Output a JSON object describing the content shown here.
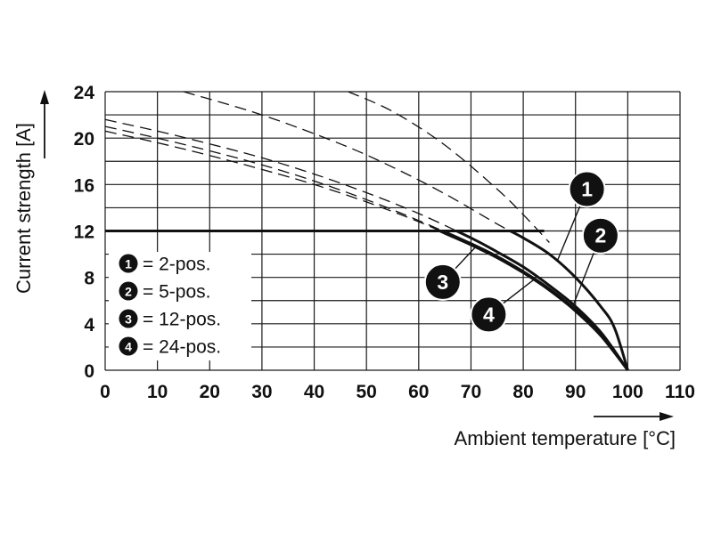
{
  "chart_data": {
    "type": "line",
    "xlabel": "Ambient temperature [°C]",
    "ylabel": "Current strength [A]",
    "xlim": [
      0,
      110
    ],
    "ylim": [
      0,
      24
    ],
    "x_ticks": [
      "0",
      "10",
      "20",
      "30",
      "40",
      "50",
      "60",
      "70",
      "80",
      "90",
      "100",
      "110"
    ],
    "y_ticks": [
      "0",
      "4",
      "8",
      "12",
      "16",
      "20",
      "24"
    ],
    "grid": true,
    "current_limit": 12,
    "legend_position": "lower-left",
    "series": [
      {
        "marker": "1",
        "name": "2-pos.",
        "x": [
          15,
          30,
          45,
          55,
          65,
          75,
          80,
          85,
          90,
          95,
          97.5,
          100
        ],
        "y": [
          24,
          22,
          19.5,
          17.5,
          15.2,
          12.6,
          11.4,
          10,
          8,
          5.4,
          3.6,
          0
        ]
      },
      {
        "marker": "2",
        "name": "5-pos.",
        "x": [
          0,
          10,
          20,
          30,
          40,
          50,
          60,
          70,
          75,
          80,
          85,
          90,
          95,
          100
        ],
        "y": [
          21.6,
          20.6,
          19.5,
          18.3,
          16.9,
          15.3,
          13.5,
          11.4,
          10.2,
          8.9,
          7.3,
          5.5,
          3.2,
          0
        ]
      },
      {
        "marker": "3",
        "name": "12-pos.",
        "x": [
          0,
          10,
          20,
          30,
          40,
          50,
          60,
          70,
          75,
          80,
          85,
          90,
          95,
          100
        ],
        "y": [
          21,
          20,
          18.9,
          17.7,
          16.3,
          14.7,
          12.9,
          10.9,
          9.8,
          8.5,
          7,
          5.2,
          3,
          0
        ]
      },
      {
        "marker": "4",
        "name": "24-pos.",
        "x": [
          0,
          10,
          20,
          30,
          40,
          50,
          60,
          65,
          70,
          75,
          80,
          85,
          90,
          95,
          100
        ],
        "y": [
          20.6,
          19.6,
          18.5,
          17.3,
          16,
          14.5,
          12.8,
          11.8,
          10.8,
          9.7,
          8.4,
          6.9,
          5.1,
          2.9,
          0
        ]
      },
      {
        "name": "",
        "x": [
          46.5,
          55,
          65,
          75,
          80,
          85
        ],
        "y": [
          24,
          22.3,
          19.4,
          15.6,
          13.4,
          11
        ]
      }
    ],
    "legend": [
      {
        "marker": "1",
        "label": "= 2-pos."
      },
      {
        "marker": "2",
        "label": "= 5-pos."
      },
      {
        "marker": "3",
        "label": "= 12-pos."
      },
      {
        "marker": "4",
        "label": "= 24-pos."
      }
    ],
    "callouts": [
      "1",
      "2",
      "3",
      "4"
    ]
  }
}
